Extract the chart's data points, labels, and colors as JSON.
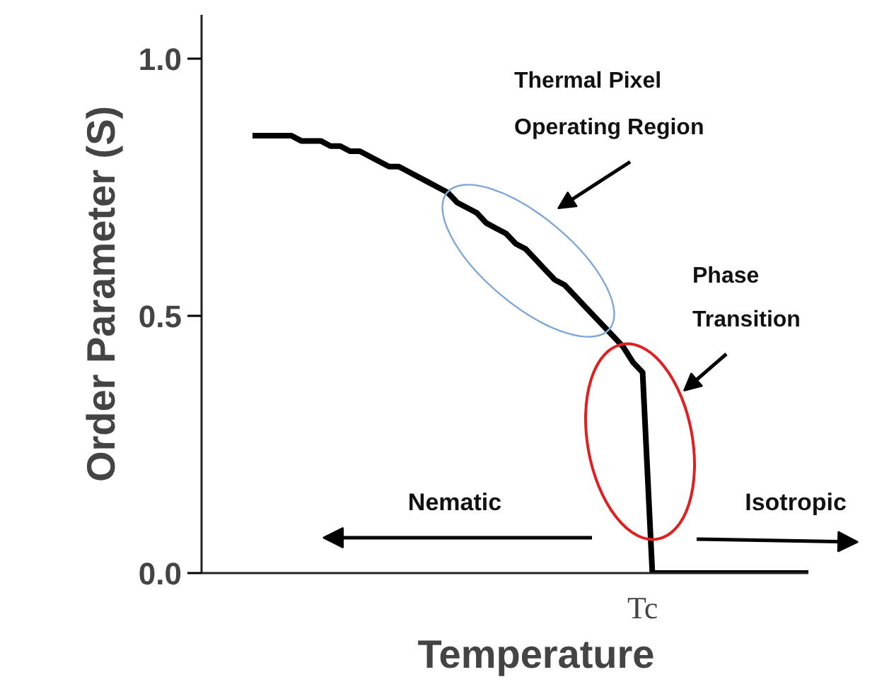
{
  "chart_data": {
    "type": "line",
    "xlabel": "Temperature",
    "ylabel": "Order Parameter (S)",
    "categories": [
      null,
      null,
      null,
      null,
      null,
      null,
      null,
      null,
      null,
      null,
      null,
      null,
      null,
      null,
      null,
      null,
      null,
      null,
      null,
      null,
      null,
      null,
      null,
      null,
      null,
      null,
      null,
      null,
      null,
      null,
      null,
      null,
      null,
      null,
      null,
      null,
      null,
      null,
      null,
      null,
      "Tc",
      null,
      null,
      null,
      null,
      null,
      null,
      null,
      null,
      null,
      null,
      null,
      null,
      null,
      null,
      null,
      null,
      null
    ],
    "series": [
      {
        "color": "#000000",
        "values": [
          0.85,
          0.85,
          0.85,
          0.85,
          0.85,
          0.84,
          0.84,
          0.84,
          0.83,
          0.83,
          0.82,
          0.82,
          0.81,
          0.8,
          0.79,
          0.79,
          0.78,
          0.77,
          0.76,
          0.75,
          0.74,
          0.72,
          0.71,
          0.7,
          0.68,
          0.67,
          0.66,
          0.64,
          0.63,
          0.61,
          0.59,
          0.57,
          0.56,
          0.54,
          0.52,
          0.5,
          0.48,
          0.46,
          0.44,
          0.41,
          0.39,
          0,
          0,
          0,
          0,
          0,
          0,
          0,
          0,
          0,
          0,
          0,
          0,
          0,
          0,
          0,
          0,
          0
        ]
      }
    ],
    "ylim": [
      0,
      1.085
    ],
    "yticks": [
      {
        "value": 0,
        "label": "0.0"
      },
      {
        "value": 0.5,
        "label": "0.5"
      },
      {
        "value": 1,
        "label": "1.0"
      }
    ],
    "annotations": [
      "Thermal Pixel Operating Region",
      "Phase Transition",
      "Nematic",
      "Isotropic"
    ],
    "grid": false,
    "legend": false,
    "marker": "none",
    "line_style": "solid"
  }
}
